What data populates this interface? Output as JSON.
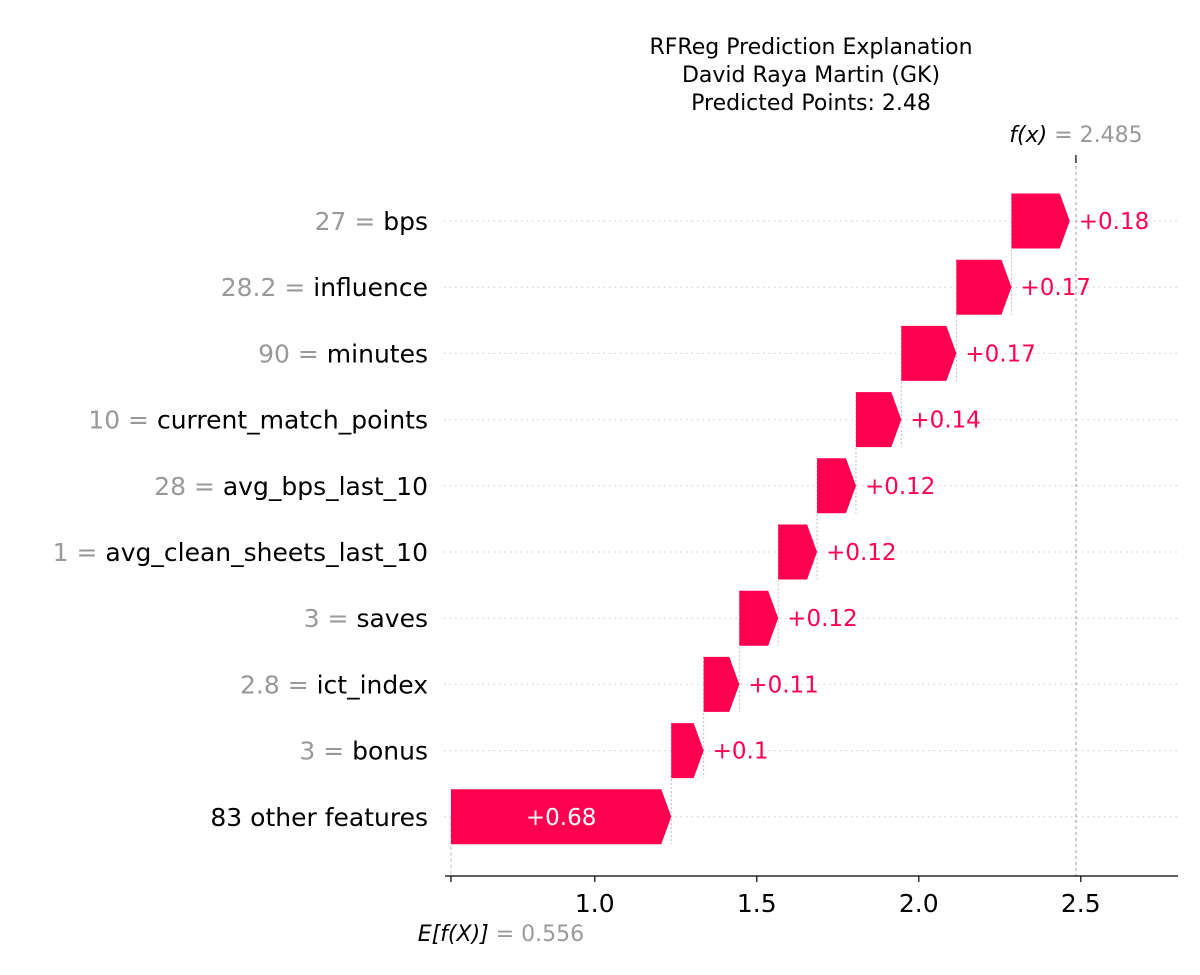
{
  "chart_data": {
    "type": "waterfall",
    "title_lines": [
      "RFReg Prediction Explanation",
      "David Raya Martin (GK)",
      "Predicted Points: 2.48"
    ],
    "base_value": 0.556,
    "base_label_prefix": "E[f(X)]",
    "base_label_value": "0.556",
    "output_value": 2.485,
    "output_label_prefix": "f(x)",
    "output_label_value": "2.485",
    "xlim": [
      0.55,
      2.8
    ],
    "xticks": [
      {
        "value": 0.556,
        "label": ""
      },
      {
        "value": 1.0,
        "label": "1.0"
      },
      {
        "value": 1.5,
        "label": "1.5"
      },
      {
        "value": 2.0,
        "label": "2.0"
      },
      {
        "value": 2.5,
        "label": "2.5"
      }
    ],
    "features": [
      {
        "value": "27",
        "name": "bps",
        "shap": 0.18,
        "label": "+0.18"
      },
      {
        "value": "28.2",
        "name": "influence",
        "shap": 0.17,
        "label": "+0.17"
      },
      {
        "value": "90",
        "name": "minutes",
        "shap": 0.17,
        "label": "+0.17"
      },
      {
        "value": "10",
        "name": "current_match_points",
        "shap": 0.14,
        "label": "+0.14"
      },
      {
        "value": "28",
        "name": "avg_bps_last_10",
        "shap": 0.12,
        "label": "+0.12"
      },
      {
        "value": "1",
        "name": "avg_clean_sheets_last_10",
        "shap": 0.12,
        "label": "+0.12"
      },
      {
        "value": "3",
        "name": "saves",
        "shap": 0.12,
        "label": "+0.12"
      },
      {
        "value": "2.8",
        "name": "ict_index",
        "shap": 0.11,
        "label": "+0.11"
      },
      {
        "value": "3",
        "name": "bonus",
        "shap": 0.1,
        "label": "+0.1"
      },
      {
        "value": "",
        "name": "83 other features",
        "shap": 0.68,
        "label": "+0.68"
      }
    ],
    "colors": {
      "positive": "#ff0051",
      "feature_value": "#999999",
      "text": "#000000",
      "gridline": "#cccccc"
    }
  }
}
